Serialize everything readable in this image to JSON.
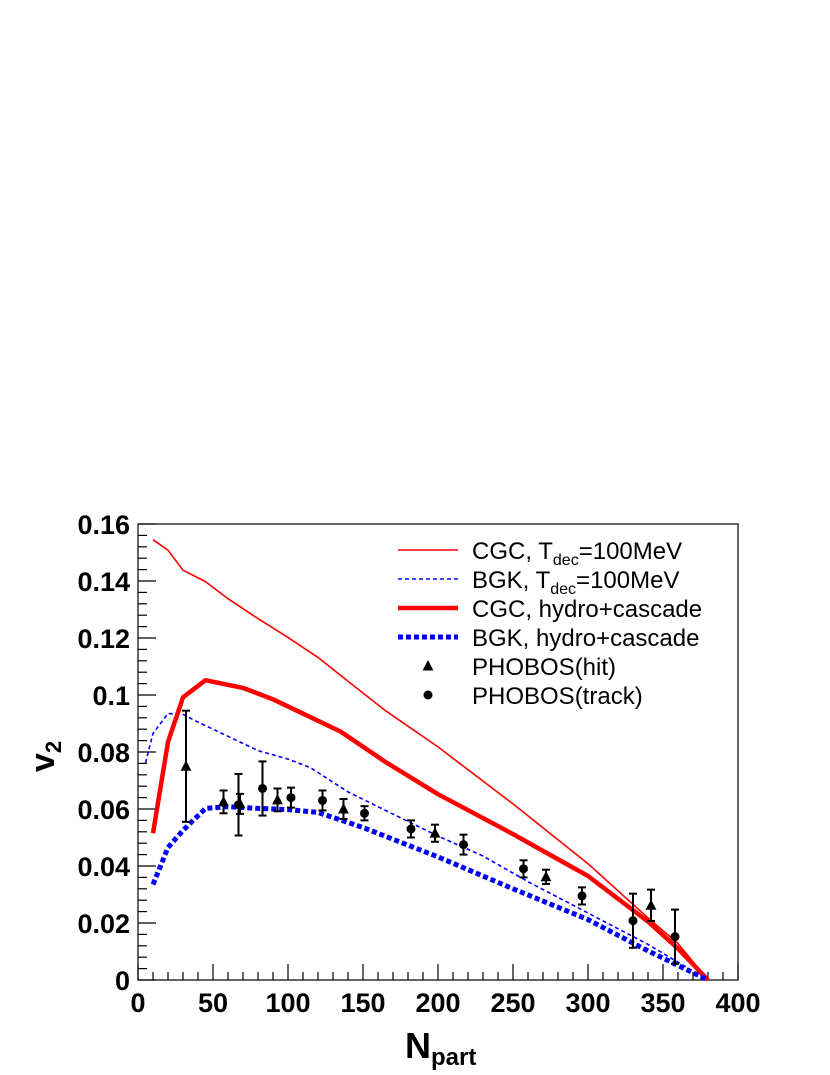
{
  "chart_data": {
    "type": "line",
    "xlabel": {
      "main": "N",
      "sub": "part"
    },
    "ylabel": {
      "main": "v",
      "sub": "2"
    },
    "xlim": [
      0,
      400
    ],
    "ylim": [
      0,
      0.16
    ],
    "x_ticks": [
      "0",
      "50",
      "100",
      "150",
      "200",
      "250",
      "300",
      "350",
      "400"
    ],
    "y_ticks": [
      "0",
      "0.02",
      "0.04",
      "0.06",
      "0.08",
      "0.1",
      "0.12",
      "0.14",
      "0.16"
    ],
    "grid": false,
    "legend_position": "top-right",
    "legend": [
      {
        "key": "cgc_tdec",
        "parts": [
          "CGC, T",
          "dec",
          "=100MeV"
        ]
      },
      {
        "key": "bgk_tdec",
        "parts": [
          "BGK, T",
          "dec",
          "=100MeV"
        ]
      },
      {
        "key": "cgc_hydro",
        "parts": [
          "CGC, hydro+cascade",
          "",
          ""
        ]
      },
      {
        "key": "bgk_hydro",
        "parts": [
          "BGK, hydro+cascade",
          "",
          ""
        ]
      },
      {
        "key": "phobos_hit",
        "parts": [
          "PHOBOS(hit)",
          "",
          ""
        ]
      },
      {
        "key": "phobos_track",
        "parts": [
          "PHOBOS(track)",
          "",
          ""
        ]
      }
    ],
    "series": [
      {
        "key": "cgc_tdec",
        "style": "thin-solid",
        "color": "#ff0000",
        "points": [
          [
            10,
            0.1545
          ],
          [
            20,
            0.1508
          ],
          [
            30,
            0.1438
          ],
          [
            45,
            0.1398
          ],
          [
            60,
            0.1338
          ],
          [
            80,
            0.1268
          ],
          [
            100,
            0.1202
          ],
          [
            120,
            0.1132
          ],
          [
            140,
            0.1048
          ],
          [
            165,
            0.0945
          ],
          [
            200,
            0.0818
          ],
          [
            250,
            0.0618
          ],
          [
            300,
            0.0408
          ],
          [
            340,
            0.0218
          ],
          [
            360,
            0.0128
          ],
          [
            380,
            0.0
          ]
        ]
      },
      {
        "key": "bgk_tdec",
        "style": "thin-dashed",
        "color": "#0000ff",
        "points": [
          [
            5,
            0.0762
          ],
          [
            10,
            0.0865
          ],
          [
            20,
            0.0935
          ],
          [
            30,
            0.0932
          ],
          [
            40,
            0.0905
          ],
          [
            60,
            0.0855
          ],
          [
            80,
            0.0805
          ],
          [
            100,
            0.0775
          ],
          [
            115,
            0.0745
          ],
          [
            140,
            0.066
          ],
          [
            165,
            0.0595
          ],
          [
            200,
            0.0505
          ],
          [
            230,
            0.0435
          ],
          [
            260,
            0.0345
          ],
          [
            300,
            0.0235
          ],
          [
            340,
            0.0125
          ],
          [
            380,
            0.0
          ]
        ]
      },
      {
        "key": "cgc_hydro",
        "style": "thick-solid",
        "color": "#ff0000",
        "points": [
          [
            10,
            0.0515
          ],
          [
            20,
            0.0835
          ],
          [
            30,
            0.0992
          ],
          [
            45,
            0.1052
          ],
          [
            70,
            0.1025
          ],
          [
            90,
            0.0985
          ],
          [
            115,
            0.0922
          ],
          [
            135,
            0.0872
          ],
          [
            165,
            0.0765
          ],
          [
            200,
            0.0652
          ],
          [
            250,
            0.0512
          ],
          [
            300,
            0.0365
          ],
          [
            340,
            0.0205
          ],
          [
            360,
            0.011
          ],
          [
            380,
            0.0
          ]
        ]
      },
      {
        "key": "bgk_hydro",
        "style": "thick-dashed",
        "color": "#0000ff",
        "points": [
          [
            10,
            0.0335
          ],
          [
            20,
            0.0465
          ],
          [
            30,
            0.0525
          ],
          [
            45,
            0.0602
          ],
          [
            60,
            0.0608
          ],
          [
            80,
            0.0602
          ],
          [
            100,
            0.0598
          ],
          [
            120,
            0.0588
          ],
          [
            150,
            0.0535
          ],
          [
            200,
            0.0432
          ],
          [
            250,
            0.032
          ],
          [
            300,
            0.0212
          ],
          [
            340,
            0.0102
          ],
          [
            380,
            0.0
          ]
        ]
      }
    ],
    "markers": [
      {
        "key": "phobos_hit",
        "shape": "triangle",
        "color": "#000000",
        "points": [
          {
            "x": 32,
            "y": 0.075,
            "err": 0.0195
          },
          {
            "x": 57,
            "y": 0.0625,
            "err": 0.004
          },
          {
            "x": 68,
            "y": 0.0618,
            "err": 0.0035
          },
          {
            "x": 93,
            "y": 0.0632,
            "err": 0.004
          },
          {
            "x": 137,
            "y": 0.06,
            "err": 0.0035
          },
          {
            "x": 198,
            "y": 0.0515,
            "err": 0.003
          },
          {
            "x": 272,
            "y": 0.0362,
            "err": 0.0025
          },
          {
            "x": 342,
            "y": 0.0262,
            "err": 0.0055
          }
        ]
      },
      {
        "key": "phobos_track",
        "shape": "circle",
        "color": "#000000",
        "points": [
          {
            "x": 67,
            "y": 0.0615,
            "err": 0.0108
          },
          {
            "x": 83,
            "y": 0.0672,
            "err": 0.0095
          },
          {
            "x": 102,
            "y": 0.064,
            "err": 0.0035
          },
          {
            "x": 123,
            "y": 0.063,
            "err": 0.0035
          },
          {
            "x": 151,
            "y": 0.0585,
            "err": 0.0025
          },
          {
            "x": 182,
            "y": 0.053,
            "err": 0.003
          },
          {
            "x": 217,
            "y": 0.0475,
            "err": 0.0035
          },
          {
            "x": 257,
            "y": 0.039,
            "err": 0.003
          },
          {
            "x": 296,
            "y": 0.0295,
            "err": 0.003
          },
          {
            "x": 330,
            "y": 0.0208,
            "err": 0.0095
          },
          {
            "x": 358,
            "y": 0.0152,
            "err": 0.0095
          }
        ]
      }
    ]
  }
}
